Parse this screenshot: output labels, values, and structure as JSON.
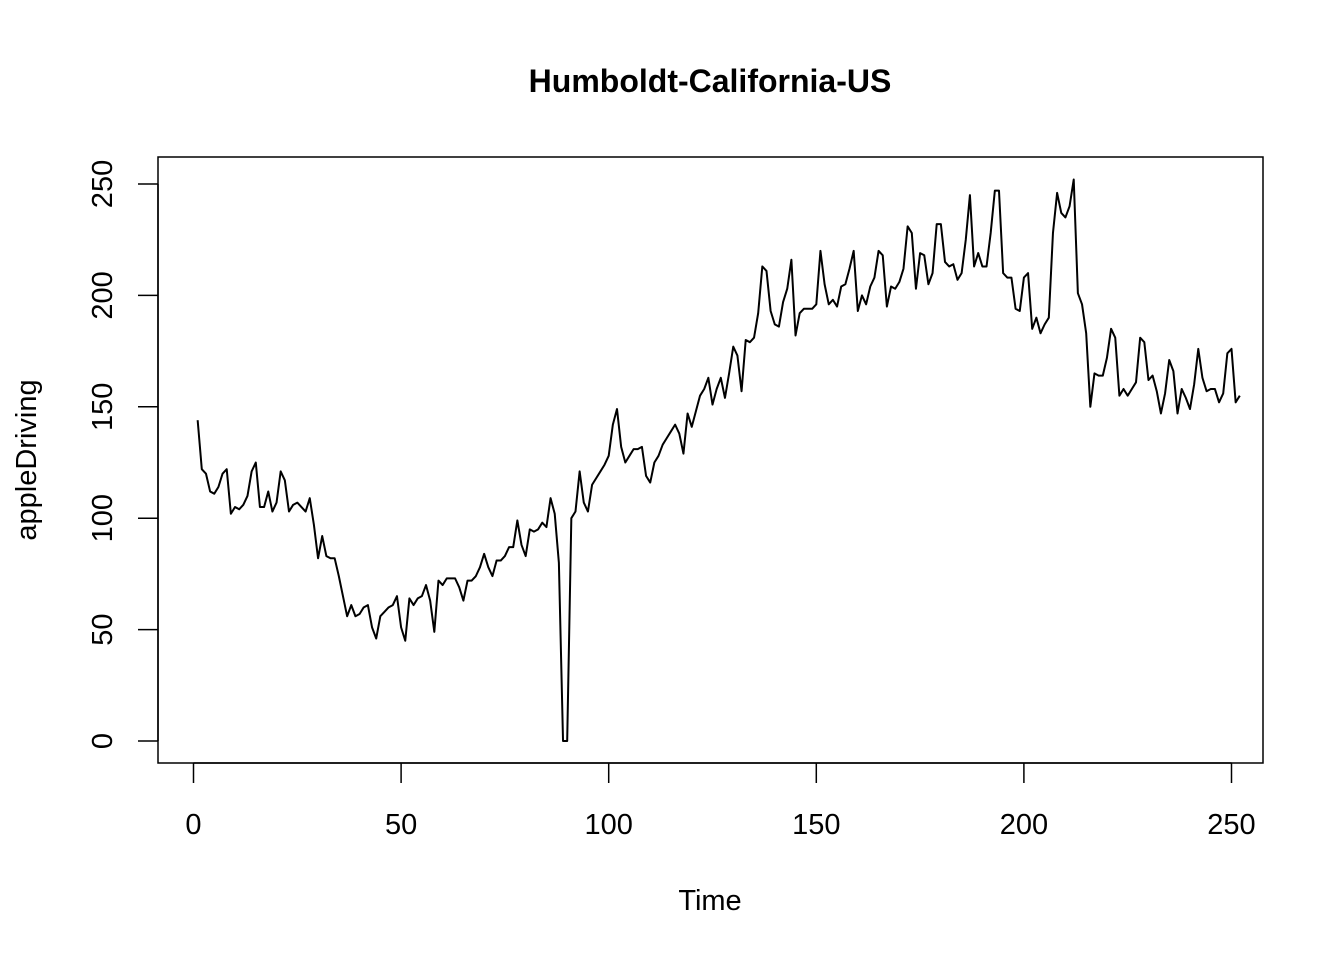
{
  "chart_data": {
    "type": "line",
    "title": "Humboldt-California-US",
    "xlabel": "Time",
    "ylabel": "appleDriving",
    "xlim": [
      1,
      248
    ],
    "ylim": [
      0,
      252
    ],
    "x_ticks": [
      0,
      50,
      100,
      150,
      200,
      250
    ],
    "y_ticks": [
      0,
      50,
      100,
      150,
      200,
      250
    ],
    "grid": false,
    "legend": "none",
    "line_color": "#000000",
    "series": [
      {
        "x_start": 1,
        "values": [
          144,
          122,
          120,
          112,
          111,
          114,
          120,
          122,
          102,
          105,
          104,
          106,
          110,
          121,
          125,
          105,
          105,
          112,
          103,
          107,
          121,
          117,
          103,
          106,
          107,
          105,
          103,
          109,
          97,
          82,
          92,
          83,
          82,
          82,
          74,
          65,
          56,
          61,
          56,
          57,
          60,
          61,
          51,
          46,
          56,
          58,
          60,
          61,
          65,
          51,
          45,
          64,
          61,
          64,
          65,
          70,
          63,
          49,
          72,
          70,
          73,
          73,
          73,
          69,
          63,
          72,
          72,
          74,
          78,
          84,
          78,
          74,
          81,
          81,
          83,
          87,
          87,
          99,
          88,
          83,
          95,
          94,
          95,
          98,
          96,
          109,
          102,
          80,
          0,
          0,
          100,
          103,
          121,
          107,
          103,
          115,
          118,
          121,
          124,
          128,
          142,
          149,
          132,
          125,
          128,
          131,
          131,
          132,
          119,
          116,
          125,
          128,
          133,
          136,
          139,
          142,
          138,
          129,
          147,
          141,
          148,
          155,
          158,
          163,
          151,
          158,
          163,
          154,
          165,
          177,
          173,
          157,
          180,
          179,
          181,
          192,
          213,
          211,
          193,
          187,
          186,
          197,
          203,
          216,
          182,
          192,
          194,
          194,
          194,
          196,
          220,
          205,
          196,
          198,
          195,
          204,
          205,
          212,
          220,
          193,
          200,
          196,
          204,
          208,
          220,
          218,
          195,
          204,
          203,
          206,
          212,
          231,
          228,
          203,
          219,
          218,
          205,
          210,
          232,
          232,
          215,
          213,
          214,
          207,
          210,
          225,
          245,
          213,
          219,
          213,
          213,
          228,
          247,
          247,
          210,
          208,
          208,
          194,
          193,
          208,
          210,
          185,
          190,
          183,
          187,
          190,
          228,
          246,
          237,
          235,
          240,
          252,
          201,
          196,
          183,
          150,
          165,
          164,
          164,
          172,
          185,
          181,
          155,
          158,
          155,
          158,
          161,
          181,
          179,
          162,
          164,
          157,
          147,
          156,
          171,
          166,
          147,
          158,
          154,
          149,
          160,
          176,
          163,
          157,
          158,
          158,
          152,
          156,
          174,
          176,
          152,
          155
        ]
      }
    ]
  }
}
